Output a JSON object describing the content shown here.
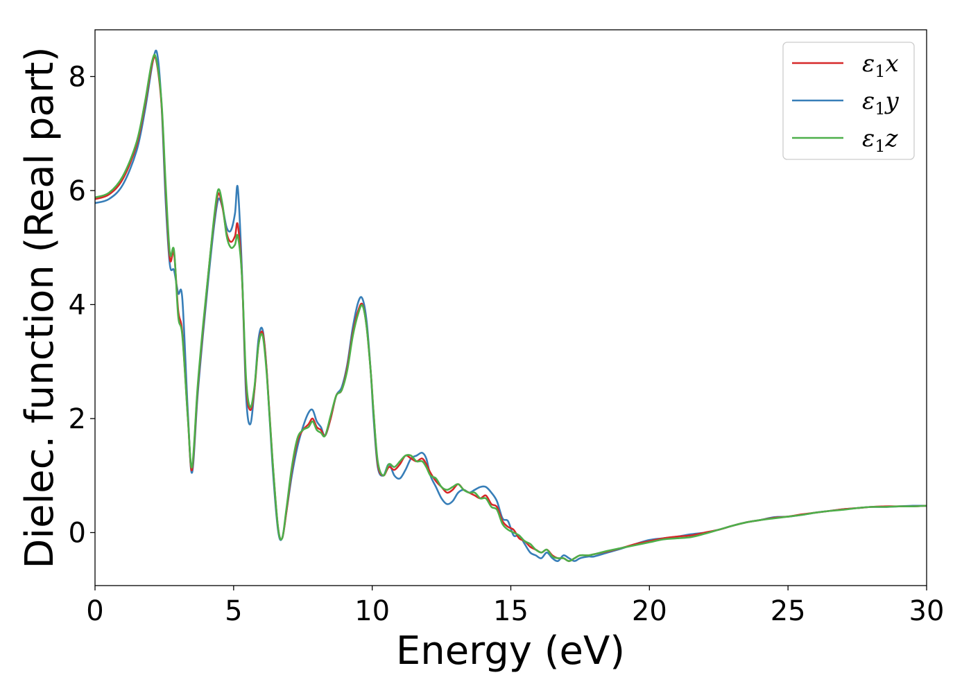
{
  "chart_data": {
    "type": "line",
    "title": "",
    "xlabel": "Energy (eV)",
    "ylabel": "Dielec. function (Real part)",
    "xlim": [
      0,
      30
    ],
    "ylim": [
      -0.93,
      8.82
    ],
    "xticks": [
      0,
      5,
      10,
      15,
      20,
      25,
      30
    ],
    "yticks": [
      0,
      2,
      4,
      6,
      8
    ],
    "xtick_labels": [
      "0",
      "5",
      "10",
      "15",
      "20",
      "25",
      "30"
    ],
    "ytick_labels": [
      "0",
      "2",
      "4",
      "6",
      "8"
    ],
    "grid": false,
    "legend_position": "top-right",
    "colors": {
      "x": "#d62728",
      "y": "#377eb8",
      "z": "#4daf4a"
    },
    "series": [
      {
        "name": "ε₁x",
        "legend": {
          "symbol": "ε",
          "sub": "1",
          "axis": "x"
        },
        "color": "#d62728",
        "x": [
          0,
          0.5,
          1.0,
          1.5,
          1.8,
          2.05,
          2.2,
          2.4,
          2.55,
          2.7,
          2.85,
          3.0,
          3.15,
          3.35,
          3.5,
          3.7,
          3.9,
          4.1,
          4.3,
          4.45,
          4.6,
          4.75,
          4.9,
          5.05,
          5.15,
          5.3,
          5.45,
          5.6,
          5.75,
          5.9,
          6.05,
          6.2,
          6.4,
          6.6,
          6.75,
          6.9,
          7.1,
          7.3,
          7.5,
          7.7,
          7.85,
          8.0,
          8.15,
          8.3,
          8.5,
          8.7,
          8.9,
          9.1,
          9.3,
          9.5,
          9.65,
          9.8,
          9.95,
          10.05,
          10.2,
          10.4,
          10.6,
          10.8,
          11.0,
          11.2,
          11.4,
          11.6,
          11.8,
          11.95,
          12.1,
          12.3,
          12.5,
          12.7,
          12.9,
          13.1,
          13.3,
          13.5,
          13.7,
          13.9,
          14.1,
          14.3,
          14.5,
          14.7,
          14.9,
          15.1,
          15.3,
          15.5,
          15.7,
          15.9,
          16.1,
          16.3,
          16.5,
          16.7,
          16.9,
          17.1,
          17.3,
          17.5,
          17.8,
          18.0,
          18.5,
          19.0,
          19.5,
          20.0,
          20.5,
          21.0,
          21.5,
          22.0,
          22.5,
          23.0,
          23.5,
          24.0,
          24.5,
          25.0,
          25.5,
          26.0,
          26.5,
          27.0,
          27.5,
          28.0,
          28.5,
          29.0,
          29.5,
          30.0
        ],
        "y": [
          5.85,
          5.93,
          6.2,
          6.8,
          7.5,
          8.2,
          8.3,
          7.5,
          6.0,
          4.8,
          4.9,
          3.9,
          3.5,
          2.0,
          1.1,
          2.5,
          3.6,
          4.6,
          5.5,
          5.95,
          5.7,
          5.25,
          5.1,
          5.2,
          5.4,
          4.5,
          2.6,
          2.15,
          2.5,
          3.3,
          3.5,
          2.8,
          1.3,
          0.1,
          -0.1,
          0.35,
          1.1,
          1.6,
          1.8,
          1.9,
          2.0,
          1.85,
          1.8,
          1.7,
          2.0,
          2.4,
          2.5,
          2.9,
          3.5,
          3.9,
          4.0,
          3.6,
          2.8,
          2.1,
          1.2,
          1.0,
          1.15,
          1.1,
          1.2,
          1.35,
          1.3,
          1.25,
          1.3,
          1.2,
          1.05,
          0.9,
          0.8,
          0.7,
          0.75,
          0.85,
          0.75,
          0.7,
          0.65,
          0.6,
          0.65,
          0.5,
          0.45,
          0.2,
          0.1,
          0.05,
          -0.1,
          -0.15,
          -0.25,
          -0.3,
          -0.35,
          -0.3,
          -0.4,
          -0.45,
          -0.45,
          -0.5,
          -0.45,
          -0.4,
          -0.4,
          -0.38,
          -0.33,
          -0.27,
          -0.2,
          -0.15,
          -0.1,
          -0.07,
          -0.05,
          0.0,
          0.05,
          0.12,
          0.18,
          0.22,
          0.26,
          0.28,
          0.32,
          0.35,
          0.38,
          0.41,
          0.43,
          0.45,
          0.46,
          0.46,
          0.46,
          0.47
        ]
      },
      {
        "name": "ε₁y",
        "legend": {
          "symbol": "ε",
          "sub": "1",
          "axis": "y"
        },
        "color": "#377eb8",
        "x": [
          0,
          0.5,
          1.0,
          1.5,
          1.8,
          2.1,
          2.25,
          2.4,
          2.55,
          2.7,
          2.85,
          3.0,
          3.15,
          3.35,
          3.5,
          3.7,
          3.9,
          4.1,
          4.3,
          4.45,
          4.6,
          4.75,
          4.9,
          5.05,
          5.15,
          5.3,
          5.45,
          5.6,
          5.75,
          5.9,
          6.05,
          6.2,
          6.4,
          6.6,
          6.75,
          6.9,
          7.1,
          7.3,
          7.5,
          7.7,
          7.85,
          8.0,
          8.15,
          8.3,
          8.5,
          8.7,
          8.9,
          9.1,
          9.3,
          9.5,
          9.65,
          9.8,
          9.95,
          10.05,
          10.2,
          10.4,
          10.6,
          10.8,
          11.0,
          11.2,
          11.4,
          11.6,
          11.8,
          11.95,
          12.1,
          12.3,
          12.5,
          12.7,
          12.9,
          13.1,
          13.3,
          13.5,
          13.7,
          13.9,
          14.1,
          14.3,
          14.5,
          14.7,
          14.9,
          15.1,
          15.3,
          15.5,
          15.7,
          15.9,
          16.1,
          16.3,
          16.5,
          16.7,
          16.9,
          17.1,
          17.3,
          17.5,
          17.8,
          18.0,
          18.5,
          19.0,
          19.5,
          20.0,
          20.5,
          21.0,
          21.5,
          22.0,
          22.5,
          23.0,
          23.5,
          24.0,
          24.5,
          25.0,
          25.5,
          26.0,
          26.5,
          27.0,
          27.5,
          28.0,
          28.5,
          29.0,
          29.5,
          30.0
        ],
        "y": [
          5.78,
          5.85,
          6.1,
          6.7,
          7.4,
          8.3,
          8.38,
          7.5,
          5.8,
          4.7,
          4.6,
          4.2,
          4.1,
          2.1,
          1.05,
          2.4,
          3.5,
          4.5,
          5.4,
          5.85,
          5.7,
          5.35,
          5.3,
          5.6,
          6.05,
          4.6,
          2.4,
          1.9,
          2.5,
          3.4,
          3.55,
          2.8,
          1.2,
          0.05,
          -0.1,
          0.35,
          1.0,
          1.5,
          1.85,
          2.1,
          2.15,
          1.95,
          1.85,
          1.7,
          2.0,
          2.4,
          2.55,
          2.95,
          3.6,
          4.05,
          4.1,
          3.7,
          2.8,
          2.0,
          1.15,
          1.0,
          1.2,
          1.0,
          0.95,
          1.1,
          1.3,
          1.35,
          1.4,
          1.3,
          1.0,
          0.8,
          0.6,
          0.5,
          0.55,
          0.7,
          0.75,
          0.7,
          0.75,
          0.8,
          0.8,
          0.7,
          0.55,
          0.25,
          0.2,
          -0.05,
          -0.05,
          -0.2,
          -0.35,
          -0.4,
          -0.45,
          -0.35,
          -0.45,
          -0.5,
          -0.4,
          -0.45,
          -0.5,
          -0.45,
          -0.42,
          -0.42,
          -0.35,
          -0.28,
          -0.2,
          -0.13,
          -0.1,
          -0.07,
          -0.03,
          0.0,
          0.05,
          0.12,
          0.18,
          0.22,
          0.27,
          0.28,
          0.31,
          0.35,
          0.38,
          0.41,
          0.43,
          0.45,
          0.45,
          0.46,
          0.47,
          0.47
        ]
      },
      {
        "name": "ε₁z",
        "legend": {
          "symbol": "ε",
          "sub": "1",
          "axis": "z"
        },
        "color": "#4daf4a",
        "x": [
          0,
          0.5,
          1.0,
          1.5,
          1.8,
          2.05,
          2.2,
          2.4,
          2.55,
          2.7,
          2.85,
          3.0,
          3.15,
          3.35,
          3.5,
          3.7,
          3.9,
          4.1,
          4.3,
          4.45,
          4.6,
          4.75,
          4.9,
          5.05,
          5.15,
          5.3,
          5.45,
          5.6,
          5.75,
          5.9,
          6.05,
          6.2,
          6.4,
          6.6,
          6.75,
          6.9,
          7.1,
          7.3,
          7.5,
          7.7,
          7.85,
          8.0,
          8.15,
          8.3,
          8.5,
          8.7,
          8.9,
          9.1,
          9.3,
          9.5,
          9.65,
          9.8,
          9.95,
          10.05,
          10.2,
          10.4,
          10.6,
          10.8,
          11.0,
          11.2,
          11.4,
          11.6,
          11.8,
          11.95,
          12.1,
          12.3,
          12.5,
          12.7,
          12.9,
          13.1,
          13.3,
          13.5,
          13.7,
          13.9,
          14.1,
          14.3,
          14.5,
          14.7,
          14.9,
          15.1,
          15.3,
          15.5,
          15.7,
          15.9,
          16.1,
          16.3,
          16.5,
          16.7,
          16.9,
          17.1,
          17.3,
          17.5,
          17.8,
          18.0,
          18.5,
          19.0,
          19.5,
          20.0,
          20.5,
          21.0,
          21.5,
          22.0,
          22.5,
          23.0,
          23.5,
          24.0,
          24.5,
          25.0,
          25.5,
          26.0,
          26.5,
          27.0,
          27.5,
          28.0,
          28.5,
          29.0,
          29.5,
          30.0
        ],
        "y": [
          5.88,
          5.96,
          6.25,
          6.85,
          7.55,
          8.25,
          8.32,
          7.55,
          6.1,
          4.9,
          4.95,
          3.8,
          3.45,
          2.0,
          1.15,
          2.55,
          3.65,
          4.6,
          5.55,
          6.02,
          5.75,
          5.2,
          5.0,
          5.05,
          5.2,
          4.5,
          2.7,
          2.2,
          2.55,
          3.3,
          3.45,
          2.75,
          1.3,
          0.1,
          -0.1,
          0.4,
          1.15,
          1.65,
          1.8,
          1.85,
          1.95,
          1.8,
          1.75,
          1.7,
          2.05,
          2.4,
          2.5,
          2.85,
          3.45,
          3.85,
          3.98,
          3.6,
          2.8,
          2.1,
          1.25,
          1.0,
          1.2,
          1.15,
          1.25,
          1.35,
          1.35,
          1.25,
          1.25,
          1.15,
          1.0,
          0.95,
          0.8,
          0.75,
          0.8,
          0.85,
          0.75,
          0.7,
          0.7,
          0.6,
          0.6,
          0.45,
          0.4,
          0.15,
          0.05,
          0.0,
          -0.05,
          -0.15,
          -0.2,
          -0.3,
          -0.35,
          -0.3,
          -0.42,
          -0.45,
          -0.45,
          -0.5,
          -0.45,
          -0.4,
          -0.4,
          -0.38,
          -0.32,
          -0.27,
          -0.22,
          -0.17,
          -0.12,
          -0.1,
          -0.08,
          -0.02,
          0.05,
          0.12,
          0.18,
          0.22,
          0.25,
          0.28,
          0.31,
          0.35,
          0.38,
          0.4,
          0.43,
          0.45,
          0.45,
          0.46,
          0.46,
          0.47
        ]
      }
    ]
  }
}
